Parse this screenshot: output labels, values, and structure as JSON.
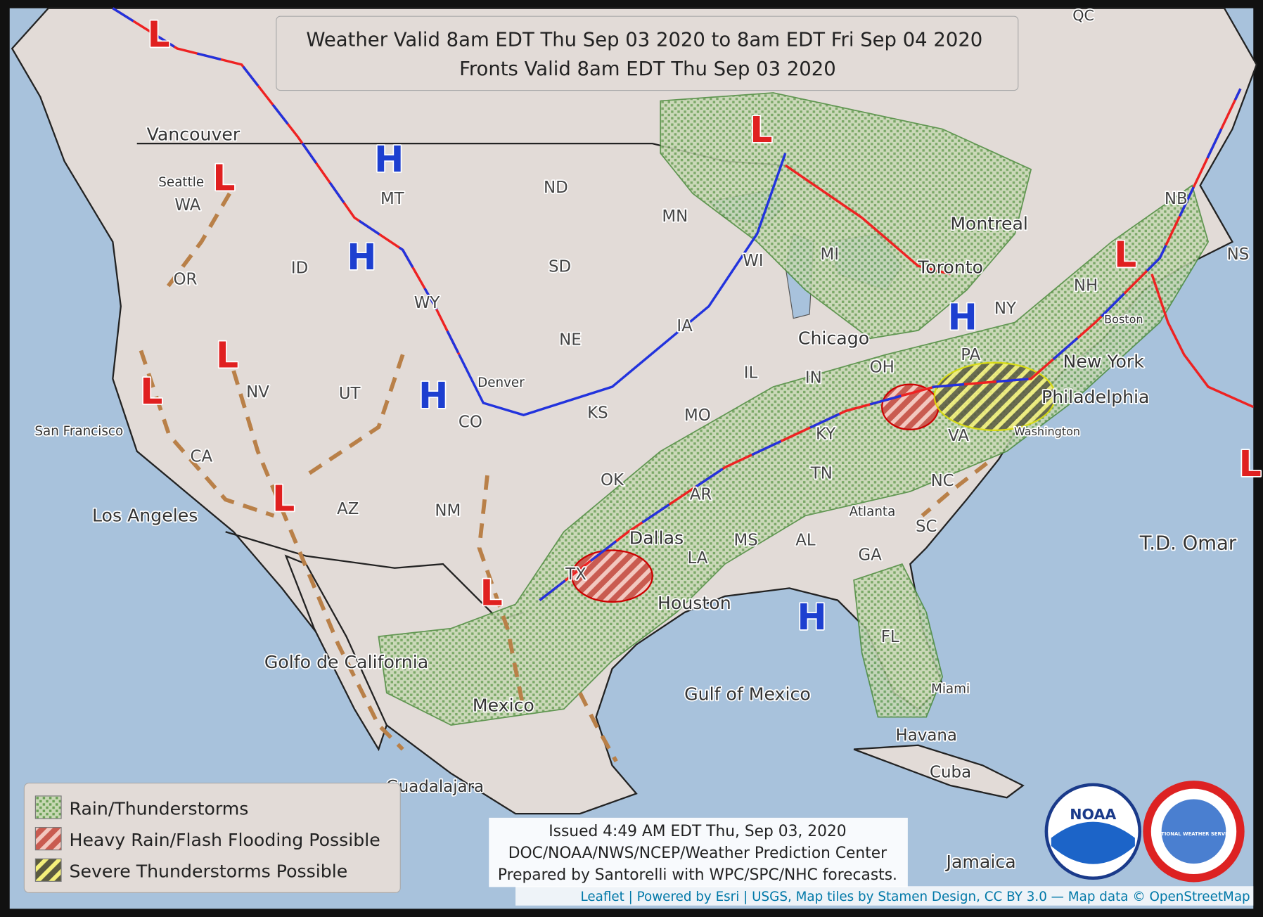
{
  "header": {
    "lines": [
      "Weather Valid 8am EDT Thu Sep 03 2020 to 8am EDT Fri Sep 04 2020",
      "Fronts Valid 8am EDT Thu Sep 03 2020"
    ]
  },
  "map": {
    "places": [
      "Vancouver",
      "Seattle",
      "San Francisco",
      "Los Angeles",
      "Denver",
      "Dallas",
      "Houston",
      "Chicago",
      "Toronto",
      "Montreal",
      "New York",
      "Philadelphia",
      "Boston",
      "Washington",
      "Atlanta",
      "Miami",
      "Havana",
      "Cuba",
      "Jamaica",
      "Mexico",
      "Guadalajara",
      "Golfo de California",
      "Gulf of Mexico",
      "T.D. Omar",
      "QC"
    ],
    "regions": [
      "WA",
      "OR",
      "ID",
      "MT",
      "WY",
      "ND",
      "SD",
      "NE",
      "KS",
      "CO",
      "UT",
      "NV",
      "CA",
      "AZ",
      "NM",
      "OK",
      "TX",
      "MN",
      "IA",
      "MO",
      "AR",
      "LA",
      "MS",
      "AL",
      "GA",
      "FL",
      "TN",
      "KY",
      "IL",
      "IN",
      "OH",
      "WI",
      "MI",
      "PA",
      "NY",
      "VA",
      "NC",
      "SC",
      "NH",
      "NB",
      "NS"
    ],
    "pressure_centers": [
      "L",
      "L",
      "L",
      "L",
      "L",
      "L",
      "L",
      "L",
      "L",
      "H",
      "H",
      "H",
      "H",
      "H"
    ]
  },
  "legend": {
    "items": [
      "Rain/Thunderstorms",
      "Heavy Rain/Flash Flooding Possible",
      "Severe Thunderstorms Possible"
    ]
  },
  "issued": {
    "lines": [
      "Issued 4:49 AM EDT Thu, Sep 03, 2020",
      "DOC/NOAA/NWS/NCEP/Weather Prediction Center",
      "Prepared by Santorelli with WPC/SPC/NHC forecasts."
    ]
  },
  "logos": {
    "noaa": "NOAA",
    "nws": "NATIONAL WEATHER SERVICE"
  },
  "attribution": "Leaflet | Powered by Esri | USGS, Map tiles by Stamen Design, CC BY 3.0 — Map data © OpenStreetMap"
}
